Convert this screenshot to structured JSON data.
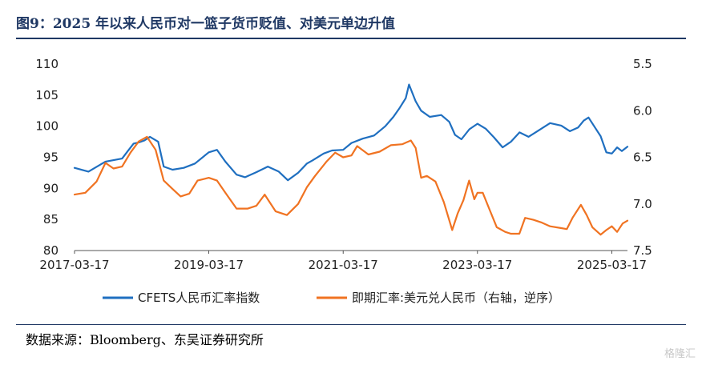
{
  "title": "图9：2025 年以来人民币对一篮子货币贬值、对美元单边升值",
  "source": "数据来源：Bloomberg、东吴证券研究所",
  "watermark": "格隆汇",
  "chart_data": {
    "type": "line",
    "x_ticks": [
      "2017-03-17",
      "2019-03-17",
      "2021-03-17",
      "2023-03-17",
      "2025-03-17"
    ],
    "x_range": [
      "2017-03-17",
      "2025-06-10"
    ],
    "y_left": {
      "ticks": [
        80,
        85,
        90,
        95,
        100,
        105,
        110
      ],
      "range": [
        80,
        110
      ]
    },
    "y_right": {
      "ticks": [
        5.5,
        6.0,
        6.5,
        7.0,
        7.5
      ],
      "range": [
        5.5,
        7.5
      ],
      "inverted": true
    },
    "grid": false,
    "legend_position": "bottom",
    "series": [
      {
        "name": "CFETS人民币汇率指数",
        "color": "#1f6fc0",
        "axis": "left",
        "points": [
          [
            "2017-03-17",
            93.3
          ],
          [
            "2017-06-01",
            92.7
          ],
          [
            "2017-09-01",
            94.3
          ],
          [
            "2017-12-01",
            94.8
          ],
          [
            "2018-01-01",
            96.0
          ],
          [
            "2018-02-01",
            97.2
          ],
          [
            "2018-03-01",
            97.4
          ],
          [
            "2018-04-01",
            97.7
          ],
          [
            "2018-05-01",
            98.3
          ],
          [
            "2018-06-15",
            97.5
          ],
          [
            "2018-07-15",
            93.5
          ],
          [
            "2018-09-01",
            93.0
          ],
          [
            "2018-11-01",
            93.3
          ],
          [
            "2019-01-01",
            94.0
          ],
          [
            "2019-03-17",
            95.8
          ],
          [
            "2019-05-01",
            96.2
          ],
          [
            "2019-06-15",
            94.3
          ],
          [
            "2019-08-15",
            92.2
          ],
          [
            "2019-10-01",
            91.8
          ],
          [
            "2019-12-01",
            92.6
          ],
          [
            "2020-02-01",
            93.5
          ],
          [
            "2020-04-01",
            92.7
          ],
          [
            "2020-05-20",
            91.3
          ],
          [
            "2020-07-15",
            92.5
          ],
          [
            "2020-09-01",
            94.0
          ],
          [
            "2020-10-01",
            94.5
          ],
          [
            "2020-12-01",
            95.6
          ],
          [
            "2021-01-15",
            96.1
          ],
          [
            "2021-03-17",
            96.2
          ],
          [
            "2021-05-01",
            97.3
          ],
          [
            "2021-07-01",
            98.0
          ],
          [
            "2021-09-01",
            98.5
          ],
          [
            "2021-11-01",
            100.0
          ],
          [
            "2021-12-15",
            101.5
          ],
          [
            "2022-01-15",
            102.8
          ],
          [
            "2022-02-20",
            104.5
          ],
          [
            "2022-03-10",
            106.7
          ],
          [
            "2022-04-15",
            104.0
          ],
          [
            "2022-05-15",
            102.5
          ],
          [
            "2022-07-01",
            101.5
          ],
          [
            "2022-09-01",
            101.8
          ],
          [
            "2022-10-15",
            100.7
          ],
          [
            "2022-11-15",
            98.6
          ],
          [
            "2022-12-20",
            97.9
          ],
          [
            "2023-02-01",
            99.5
          ],
          [
            "2023-03-17",
            100.4
          ],
          [
            "2023-05-01",
            99.6
          ],
          [
            "2023-06-15",
            98.2
          ],
          [
            "2023-08-01",
            96.6
          ],
          [
            "2023-09-15",
            97.5
          ],
          [
            "2023-11-01",
            99.0
          ],
          [
            "2023-12-20",
            98.3
          ],
          [
            "2024-02-01",
            99.1
          ],
          [
            "2024-04-15",
            100.5
          ],
          [
            "2024-06-15",
            100.1
          ],
          [
            "2024-08-01",
            99.2
          ],
          [
            "2024-09-15",
            99.8
          ],
          [
            "2024-10-15",
            100.9
          ],
          [
            "2024-11-10",
            101.4
          ],
          [
            "2024-12-15",
            99.8
          ],
          [
            "2025-01-15",
            98.4
          ],
          [
            "2025-02-15",
            95.8
          ],
          [
            "2025-03-17",
            95.6
          ],
          [
            "2025-04-15",
            96.6
          ],
          [
            "2025-05-10",
            96.0
          ],
          [
            "2025-06-10",
            96.7
          ]
        ]
      },
      {
        "name": "即期汇率:美元兑人民币（右轴，逆序）",
        "color": "#f07322",
        "axis": "right",
        "points": [
          [
            "2017-03-17",
            6.9
          ],
          [
            "2017-05-15",
            6.88
          ],
          [
            "2017-07-15",
            6.76
          ],
          [
            "2017-09-01",
            6.56
          ],
          [
            "2017-10-15",
            6.62
          ],
          [
            "2017-12-01",
            6.6
          ],
          [
            "2018-01-15",
            6.45
          ],
          [
            "2018-03-01",
            6.33
          ],
          [
            "2018-04-15",
            6.28
          ],
          [
            "2018-06-01",
            6.42
          ],
          [
            "2018-07-15",
            6.75
          ],
          [
            "2018-09-01",
            6.84
          ],
          [
            "2018-10-15",
            6.92
          ],
          [
            "2018-12-01",
            6.89
          ],
          [
            "2019-01-15",
            6.75
          ],
          [
            "2019-03-17",
            6.72
          ],
          [
            "2019-05-01",
            6.75
          ],
          [
            "2019-06-15",
            6.88
          ],
          [
            "2019-08-15",
            7.05
          ],
          [
            "2019-10-15",
            7.05
          ],
          [
            "2019-12-01",
            7.02
          ],
          [
            "2020-01-15",
            6.9
          ],
          [
            "2020-03-15",
            7.08
          ],
          [
            "2020-05-15",
            7.12
          ],
          [
            "2020-07-15",
            7.0
          ],
          [
            "2020-09-01",
            6.82
          ],
          [
            "2020-10-15",
            6.7
          ],
          [
            "2020-12-15",
            6.55
          ],
          [
            "2021-02-01",
            6.45
          ],
          [
            "2021-03-17",
            6.5
          ],
          [
            "2021-05-01",
            6.48
          ],
          [
            "2021-06-01",
            6.38
          ],
          [
            "2021-08-01",
            6.47
          ],
          [
            "2021-10-01",
            6.44
          ],
          [
            "2021-12-01",
            6.37
          ],
          [
            "2022-02-01",
            6.36
          ],
          [
            "2022-03-20",
            6.32
          ],
          [
            "2022-04-15",
            6.4
          ],
          [
            "2022-05-15",
            6.72
          ],
          [
            "2022-06-15",
            6.7
          ],
          [
            "2022-08-01",
            6.76
          ],
          [
            "2022-09-15",
            6.98
          ],
          [
            "2022-10-31",
            7.28
          ],
          [
            "2022-11-30",
            7.1
          ],
          [
            "2022-12-31",
            6.96
          ],
          [
            "2023-01-31",
            6.75
          ],
          [
            "2023-02-28",
            6.95
          ],
          [
            "2023-03-17",
            6.88
          ],
          [
            "2023-04-15",
            6.88
          ],
          [
            "2023-05-20",
            7.05
          ],
          [
            "2023-06-30",
            7.25
          ],
          [
            "2023-08-15",
            7.3
          ],
          [
            "2023-09-15",
            7.32
          ],
          [
            "2023-10-31",
            7.32
          ],
          [
            "2023-12-01",
            7.15
          ],
          [
            "2024-01-15",
            7.17
          ],
          [
            "2024-03-01",
            7.2
          ],
          [
            "2024-04-15",
            7.24
          ],
          [
            "2024-06-15",
            7.26
          ],
          [
            "2024-07-15",
            7.27
          ],
          [
            "2024-08-15",
            7.15
          ],
          [
            "2024-09-30",
            7.01
          ],
          [
            "2024-10-31",
            7.12
          ],
          [
            "2024-12-01",
            7.25
          ],
          [
            "2025-01-15",
            7.33
          ],
          [
            "2025-02-15",
            7.28
          ],
          [
            "2025-03-17",
            7.24
          ],
          [
            "2025-04-15",
            7.3
          ],
          [
            "2025-05-15",
            7.21
          ],
          [
            "2025-06-10",
            7.18
          ]
        ]
      }
    ]
  }
}
